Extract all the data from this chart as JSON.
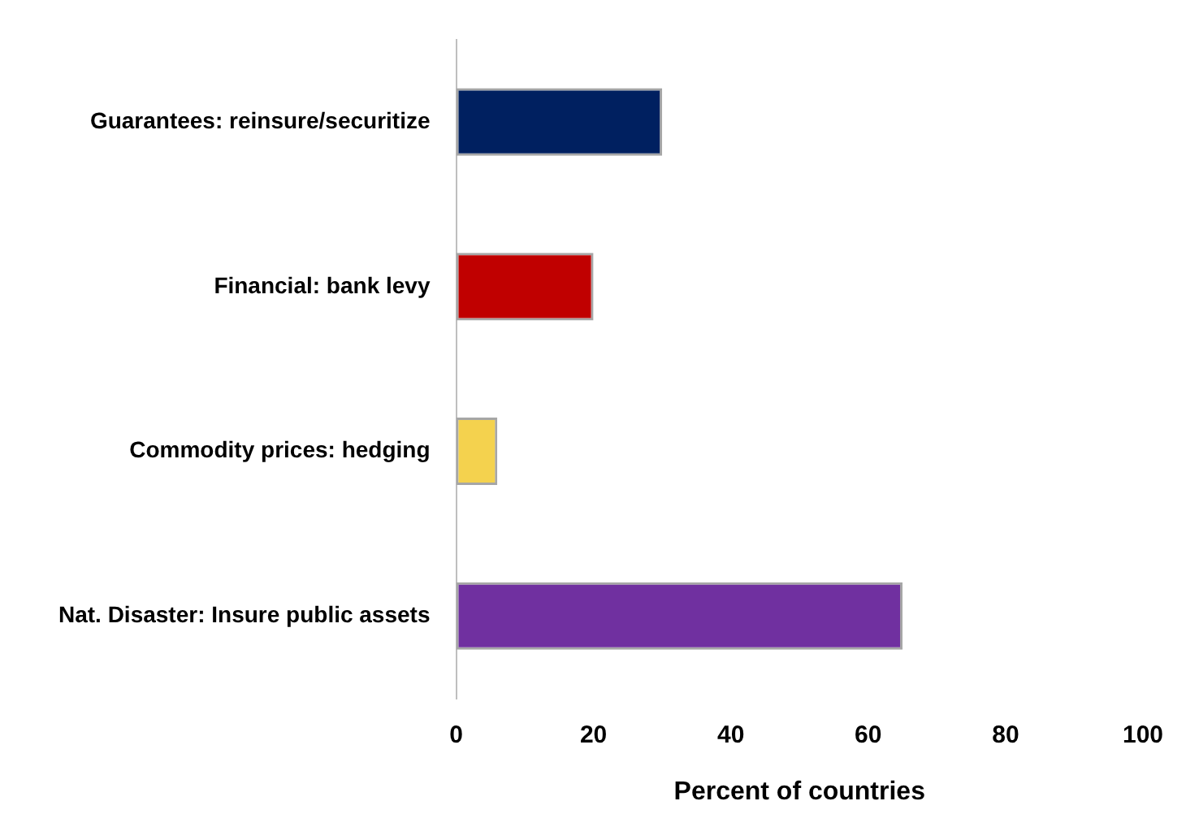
{
  "chart_data": {
    "type": "bar",
    "orientation": "horizontal",
    "xlabel": "Percent of countries",
    "categories": [
      "Guarantees: reinsure/securitize",
      "Financial: bank levy",
      "Commodity prices: hedging",
      "Nat. Disaster: Insure public assets"
    ],
    "values": [
      30,
      20,
      6,
      65
    ],
    "colors": [
      "#002060",
      "#c00000",
      "#f4d24e",
      "#7030a0"
    ],
    "xlim": [
      0,
      100
    ],
    "xticks": [
      0,
      20,
      40,
      60,
      80,
      100
    ],
    "grid": false,
    "legend": false
  }
}
